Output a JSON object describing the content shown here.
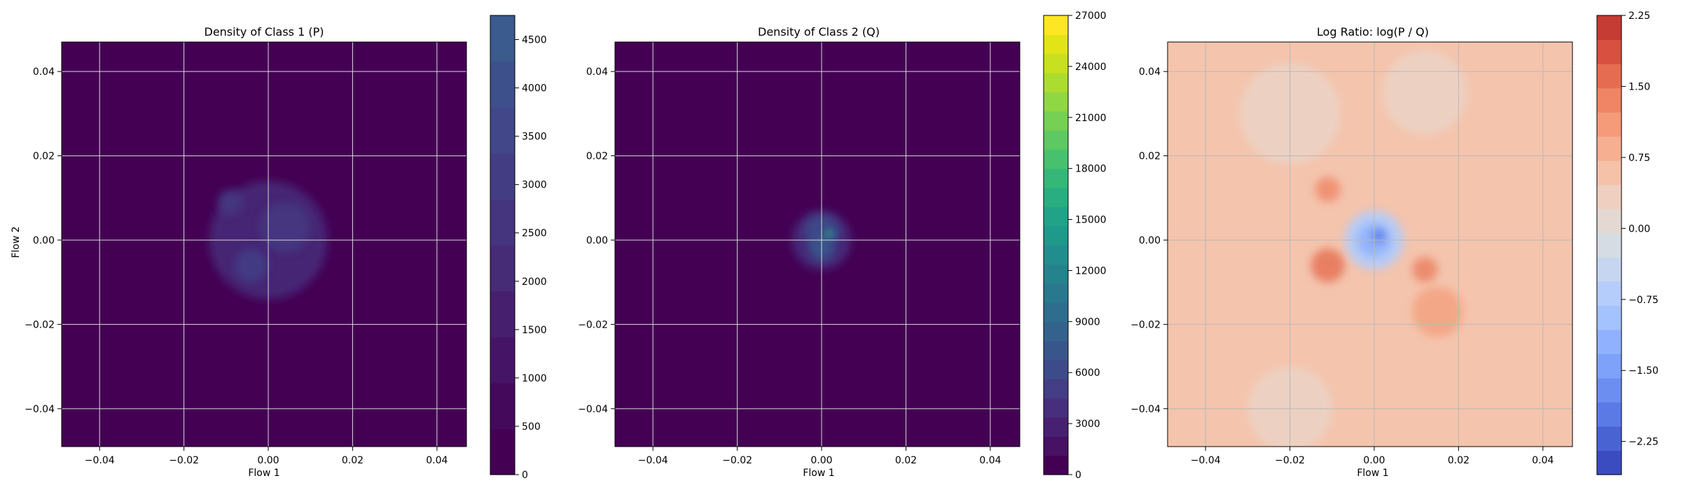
{
  "chart_data": [
    {
      "type": "heatmap",
      "title": "Density of Class 1 (P)",
      "xlabel": "Flow 1",
      "ylabel": "Flow 2",
      "xlim": [
        -0.049,
        0.047
      ],
      "ylim": [
        -0.049,
        0.047
      ],
      "xticks": [
        "−0.04",
        "−0.02",
        "0.00",
        "0.02",
        "0.04"
      ],
      "yticks": [
        "−0.04",
        "−0.02",
        "0.00",
        "0.02",
        "0.04"
      ],
      "grid": true,
      "colormap": "viridis",
      "background_color": "#440154",
      "colorbar": {
        "min": 0,
        "max": 4750,
        "ticks": [
          "0",
          "500",
          "1000",
          "1500",
          "2000",
          "2500",
          "3000",
          "3500",
          "4000",
          "4500"
        ],
        "colors": [
          "#440154",
          "#45095c",
          "#461466",
          "#46206f",
          "#462b77",
          "#45357e",
          "#433e84",
          "#414788",
          "#3e508b",
          "#3b5a8d"
        ]
      },
      "blobs": [
        {
          "x": 0.0,
          "y": 0.0,
          "spread": 0.014,
          "value": 450,
          "color": "#472b78"
        },
        {
          "x": 0.004,
          "y": 0.003,
          "spread": 0.006,
          "value": 700,
          "color": "#453781"
        },
        {
          "x": -0.004,
          "y": -0.006,
          "spread": 0.004,
          "value": 800,
          "color": "#433e85"
        },
        {
          "x": -0.009,
          "y": 0.009,
          "spread": 0.003,
          "value": 500,
          "color": "#453781"
        }
      ]
    },
    {
      "type": "heatmap",
      "title": "Density of Class 2 (Q)",
      "xlabel": "Flow 1",
      "ylabel": "",
      "xlim": [
        -0.049,
        0.047
      ],
      "ylim": [
        -0.049,
        0.047
      ],
      "xticks": [
        "−0.04",
        "−0.02",
        "0.00",
        "0.02",
        "0.04"
      ],
      "yticks": [
        "−0.04",
        "−0.02",
        "0.00",
        "0.02",
        "0.04"
      ],
      "grid": true,
      "colormap": "viridis",
      "background_color": "#440154",
      "colorbar": {
        "min": 0,
        "max": 27000,
        "ticks": [
          "0",
          "3000",
          "6000",
          "9000",
          "12000",
          "15000",
          "18000",
          "21000",
          "24000",
          "27000"
        ],
        "colors": [
          "#440154",
          "#471164",
          "#482071",
          "#472f7d",
          "#433e85",
          "#3e4b8a",
          "#39568c",
          "#33638d",
          "#2e6d8e",
          "#29788e",
          "#25838e",
          "#218e8d",
          "#1f998a",
          "#20a386",
          "#28ae80",
          "#35b779",
          "#48c16e",
          "#5ec962",
          "#75d054",
          "#90d743",
          "#addc30",
          "#c8e020",
          "#e2e418",
          "#fde725"
        ]
      },
      "blobs": [
        {
          "x": 0.0,
          "y": 0.0,
          "spread": 0.007,
          "value": 3000,
          "color": "#472f7d"
        },
        {
          "x": 0.0,
          "y": 0.002,
          "spread": 0.004,
          "value": 6000,
          "color": "#3e4b8a"
        },
        {
          "x": 0.0,
          "y": -0.002,
          "spread": 0.003,
          "value": 6000,
          "color": "#39568c"
        },
        {
          "x": 0.002,
          "y": 0.0015,
          "spread": 0.0012,
          "value": 15000,
          "color": "#25838e"
        },
        {
          "x": 0.0015,
          "y": 0.0015,
          "spread": 0.0005,
          "value": 21000,
          "color": "#5ec962"
        }
      ]
    },
    {
      "type": "heatmap",
      "title": "Log Ratio: log(P / Q)",
      "xlabel": "Flow 1",
      "ylabel": "",
      "xlim": [
        -0.049,
        0.047
      ],
      "ylim": [
        -0.049,
        0.047
      ],
      "xticks": [
        "−0.04",
        "−0.02",
        "0.00",
        "0.02",
        "0.04"
      ],
      "yticks": [
        "−0.04",
        "−0.02",
        "0.00",
        "0.02",
        "0.04"
      ],
      "grid": true,
      "colormap": "coolwarm",
      "background_color": "#f4c4ad",
      "colorbar": {
        "min": -2.6,
        "max": 2.25,
        "ticks": [
          "−2.25",
          "−1.50",
          "−0.75",
          "0.00",
          "0.75",
          "1.50",
          "2.25"
        ],
        "colors": [
          "#3b4cc0",
          "#4a63d3",
          "#5b7ae5",
          "#6c8ef1",
          "#7ea1fa",
          "#90b2fe",
          "#a3c2fe",
          "#b4cdfa",
          "#c6d6f1",
          "#d6dce4",
          "#e4d9d2",
          "#efcfbf",
          "#f5c1a9",
          "#f7af91",
          "#f59b7a",
          "#ef8564",
          "#e66c51",
          "#d8503f",
          "#c43c33"
        ]
      },
      "blobs": [
        {
          "x": -0.02,
          "y": 0.03,
          "spread": 0.012,
          "value": 0.3,
          "color": "#ecd3c5"
        },
        {
          "x": 0.012,
          "y": 0.035,
          "spread": 0.01,
          "value": 0.3,
          "color": "#ecd3c5"
        },
        {
          "x": -0.02,
          "y": -0.04,
          "spread": 0.01,
          "value": 0.3,
          "color": "#ecd3c5"
        },
        {
          "x": -0.011,
          "y": -0.006,
          "spread": 0.004,
          "value": 1.5,
          "color": "#e7785c"
        },
        {
          "x": -0.011,
          "y": 0.012,
          "spread": 0.003,
          "value": 1.2,
          "color": "#f08d6e"
        },
        {
          "x": 0.012,
          "y": -0.007,
          "spread": 0.003,
          "value": 1.3,
          "color": "#ec8668"
        },
        {
          "x": 0.015,
          "y": -0.017,
          "spread": 0.006,
          "value": 0.9,
          "color": "#f4a483"
        },
        {
          "x": 0.0,
          "y": 0.0,
          "spread": 0.007,
          "value": -0.75,
          "color": "#b2ccfb"
        },
        {
          "x": 0.0,
          "y": 0.0,
          "spread": 0.004,
          "value": -1.2,
          "color": "#8fb1fe"
        },
        {
          "x": 0.001,
          "y": 0.001,
          "spread": 0.0015,
          "value": -1.9,
          "color": "#5e7de7"
        }
      ]
    }
  ]
}
